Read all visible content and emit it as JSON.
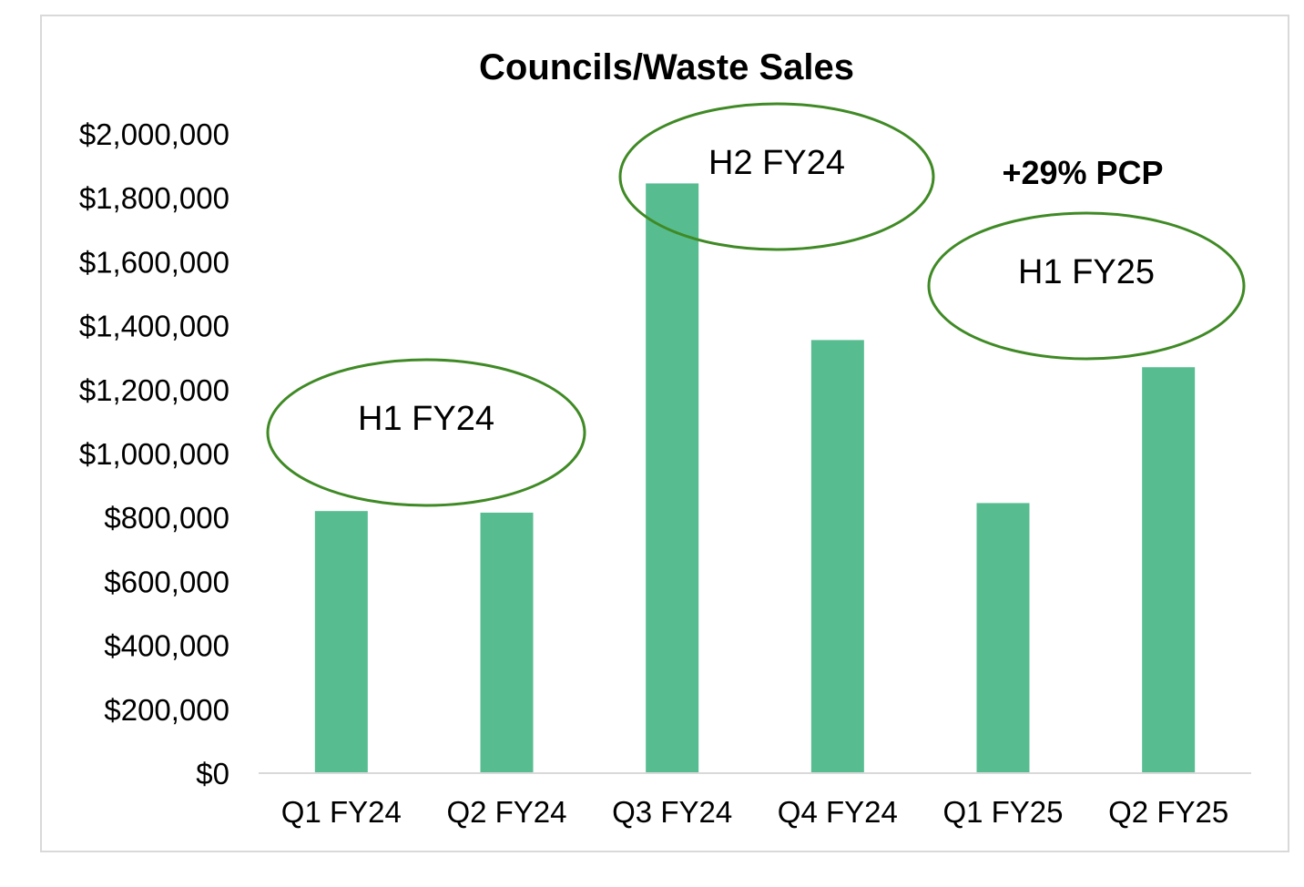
{
  "chart_data": {
    "type": "bar",
    "title": "Councils/Waste Sales",
    "xlabel": "",
    "ylabel": "",
    "categories": [
      "Q1 FY24",
      "Q2 FY24",
      "Q3 FY24",
      "Q4 FY24",
      "Q1 FY25",
      "Q2 FY25"
    ],
    "values": [
      820000,
      815000,
      1845000,
      1355000,
      845000,
      1270000
    ],
    "ylim": [
      0,
      2000000
    ],
    "yticks": [
      "$0",
      "$200,000",
      "$400,000",
      "$600,000",
      "$800,000",
      "$1,000,000",
      "$1,200,000",
      "$1,400,000",
      "$1,600,000",
      "$1,800,000",
      "$2,000,000"
    ],
    "grid": false,
    "legend": "none",
    "colors": {
      "bar": "#57bd91",
      "annotation_ellipse": "#3f8a25",
      "axis": "#d9d9d9",
      "border": "#d9d9d9"
    },
    "annotations": [
      {
        "text": "H1 FY24",
        "style": "ellipse"
      },
      {
        "text": "H2 FY24",
        "style": "ellipse"
      },
      {
        "text": "+29% PCP",
        "style": "bold"
      },
      {
        "text": "H1 FY25",
        "style": "ellipse"
      }
    ]
  }
}
